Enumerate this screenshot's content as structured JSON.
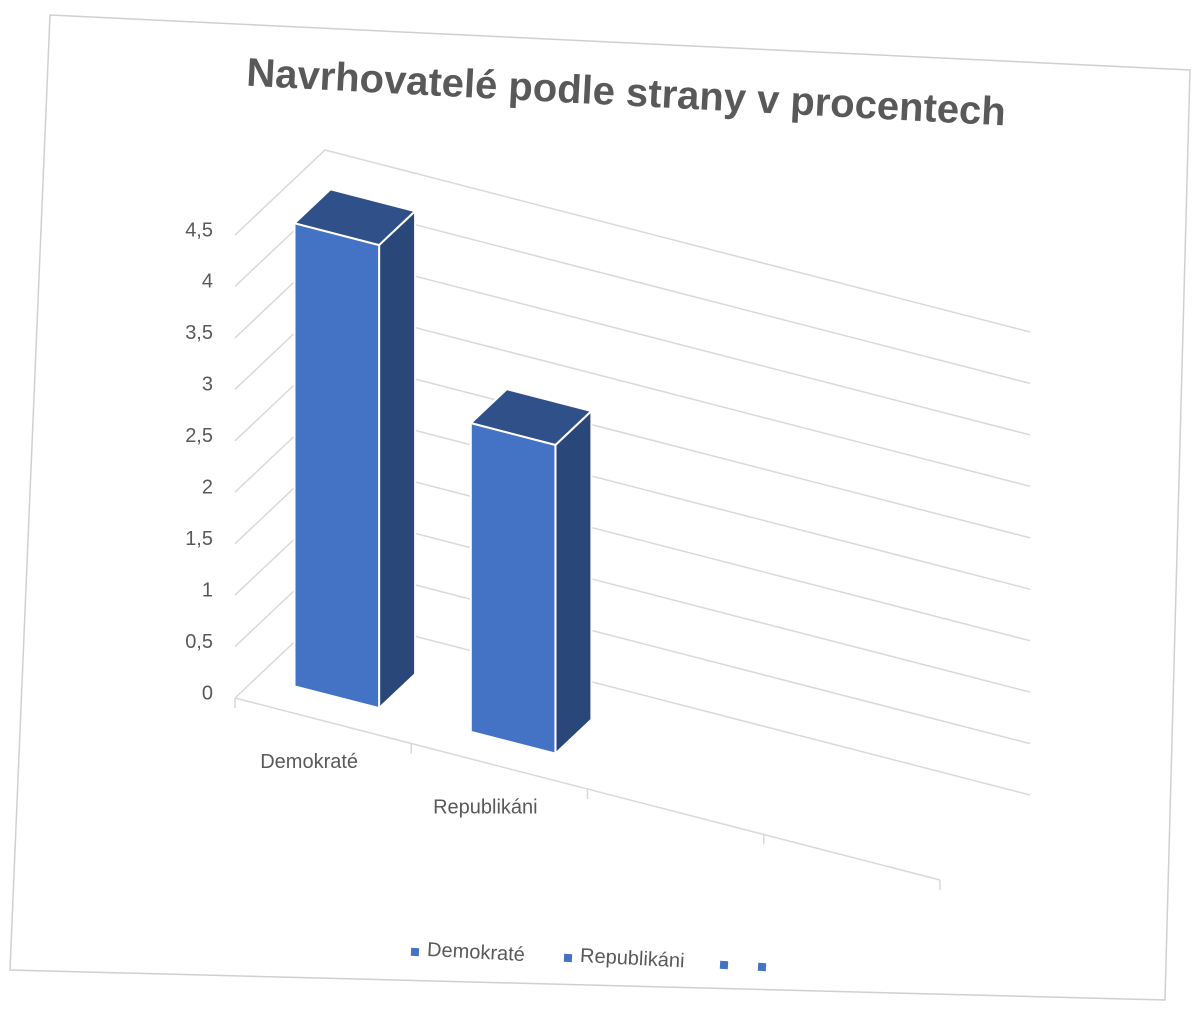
{
  "chart_data": {
    "type": "bar3d",
    "title": "Navrhovatelé podle strany v procentech",
    "categories": [
      "Demokraté",
      "Republikáni",
      null,
      null
    ],
    "values": [
      4.5,
      3,
      null,
      null
    ],
    "color": "#4472c4",
    "ylim": [
      0,
      4.5
    ],
    "yticks": [
      0,
      {
        "value": 0.5,
        "label": "0,5"
      },
      1,
      {
        "value": 1.5,
        "label": "1,5"
      },
      2,
      {
        "value": 2.5,
        "label": "2,5"
      },
      3,
      {
        "value": 3.5,
        "label": "3,5"
      },
      4,
      {
        "value": 4.5,
        "label": "4,5"
      }
    ],
    "grid": true,
    "legend": "bottom"
  }
}
